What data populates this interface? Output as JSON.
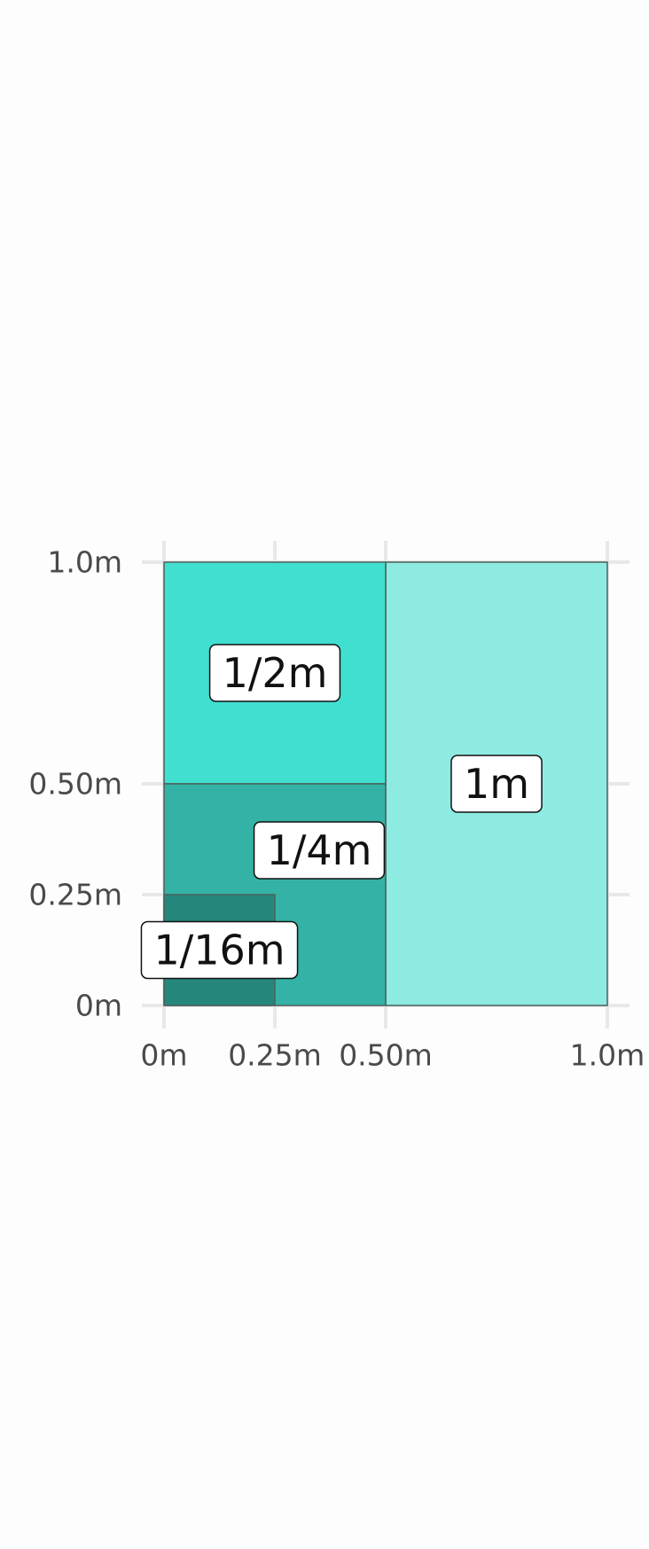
{
  "chart_data": {
    "type": "rect",
    "title": "",
    "xlabel": "",
    "ylabel": "",
    "xlim": [
      -0.1,
      1.05
    ],
    "ylim": [
      0,
      1
    ],
    "grid": true,
    "x_ticks": [
      {
        "value": 0,
        "label": "0m"
      },
      {
        "value": 0.25,
        "label": "0.25m"
      },
      {
        "value": 0.5,
        "label": "0.50m"
      },
      {
        "value": 1.0,
        "label": "1.0m"
      }
    ],
    "y_ticks": [
      {
        "value": 0,
        "label": "0m"
      },
      {
        "value": 0.25,
        "label": "0.25m"
      },
      {
        "value": 0.5,
        "label": "0.50m"
      },
      {
        "value": 1.0,
        "label": "1.0m"
      }
    ],
    "rects": [
      {
        "id": "1m",
        "xmin": 0.5,
        "xmax": 1.0,
        "ymin": 0,
        "ymax": 1.0,
        "color": "#8eebe1",
        "label": "1m",
        "label_x": 0.75,
        "label_y": 0.5
      },
      {
        "id": "1-2m",
        "xmin": 0,
        "xmax": 0.5,
        "ymin": 0.5,
        "ymax": 1.0,
        "color": "#40dfd0",
        "label": "1/2m",
        "label_x": 0.25,
        "label_y": 0.75
      },
      {
        "id": "1-4m",
        "xmin": 0,
        "xmax": 0.5,
        "ymin": 0,
        "ymax": 0.5,
        "color": "#33b2a5",
        "label": "1/4m",
        "label_x": 0.35,
        "label_y": 0.35
      },
      {
        "id": "1-16m",
        "xmin": 0,
        "xmax": 0.25,
        "ymin": 0,
        "ymax": 0.25,
        "color": "#25877c",
        "label": "1/16m",
        "label_x": 0.125,
        "label_y": 0.125
      }
    ]
  }
}
